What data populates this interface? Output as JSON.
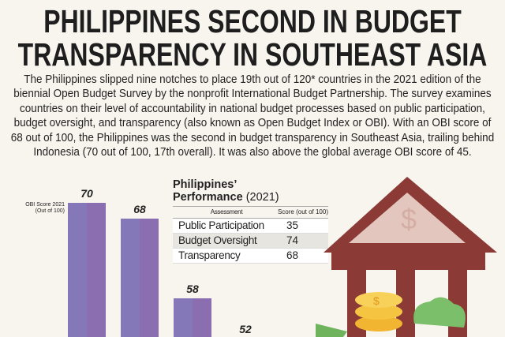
{
  "header": {
    "line1": "PHILIPPINES SECOND IN BUDGET",
    "line2": "TRANSPARENCY IN SOUTHEAST ASIA"
  },
  "intro": "The Philippines slipped nine notches to place 19th out of 120* countries in the 2021 edition of the biennial Open Budget Survey by the nonprofit International Budget Partnership. The survey examines countries on their level of accountability in national budget processes based on public participation, budget oversight, and transparency (also known as Open Budget Index or OBI). With an OBI score of 68 out of 100, the Philippines was the second in budget transparency in Southeast Asia, trailing behind Indonesia (70 out of 100, 17th overall). It was also above the global average OBI score of 45.",
  "chart_data": {
    "type": "bar",
    "ylabel": "OBI Score 2021 (Out of 100)",
    "values": [
      70,
      68,
      58,
      52
    ],
    "labels": [
      "70",
      "68",
      "58",
      "52"
    ],
    "colors": [
      "#8478b8",
      "#8a6eb0"
    ]
  },
  "table": {
    "title": "Philippines’",
    "subtitle_bold": "Performance",
    "subtitle_year": "(2021)",
    "headers": [
      "Assessment",
      "Score (out of 100)"
    ],
    "rows": [
      {
        "name": "Public Participation",
        "score": "35"
      },
      {
        "name": "Budget Oversight",
        "score": "74"
      },
      {
        "name": "Transparency",
        "score": "68"
      }
    ]
  },
  "illustration": {
    "icon": "bank-building-with-coins-icon",
    "color": "#8b3a35"
  }
}
